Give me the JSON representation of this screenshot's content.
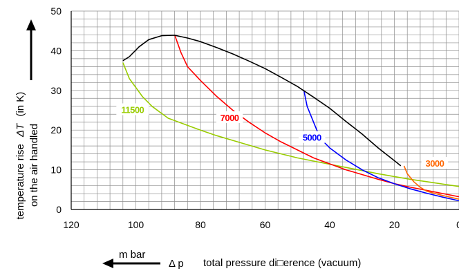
{
  "chart_data": {
    "type": "line",
    "title": "",
    "ylabel_line1": "temperature rise",
    "ylabel_symbol": "ΔT",
    "ylabel_unit": "(in K)",
    "ylabel_line2": "on the air handled",
    "xlabel_unit": "m bar",
    "xlabel_symbol": "Δ p",
    "xlabel_text": "total pressure di□erence (vacuum)",
    "x_reversed": true,
    "xlim": [
      0,
      120
    ],
    "ylim": [
      0,
      50
    ],
    "x_ticks": [
      "120",
      "100",
      "80",
      "60",
      "40",
      "20",
      "0"
    ],
    "y_ticks": [
      "0",
      "10",
      "20",
      "30",
      "40",
      "50"
    ],
    "grid": true,
    "series": [
      {
        "name": "11500",
        "color": "#99cc00",
        "points": [
          [
            104,
            37
          ],
          [
            102,
            33
          ],
          [
            98,
            28.5
          ],
          [
            95,
            26
          ],
          [
            90,
            23
          ],
          [
            85,
            21.5
          ],
          [
            80,
            20
          ],
          [
            75,
            18.6
          ],
          [
            70,
            17.4
          ],
          [
            65,
            16.2
          ],
          [
            60,
            15
          ],
          [
            55,
            14
          ],
          [
            50,
            13
          ],
          [
            45,
            12.2
          ],
          [
            40,
            11.4
          ],
          [
            35,
            10.6
          ],
          [
            30,
            9.8
          ],
          [
            25,
            9
          ],
          [
            20,
            8.3
          ],
          [
            15,
            7.6
          ],
          [
            10,
            7
          ],
          [
            5,
            6.4
          ],
          [
            0,
            5.8
          ]
        ]
      },
      {
        "name": "7000",
        "color": "#ff0000",
        "points": [
          [
            88,
            44
          ],
          [
            86,
            39.5
          ],
          [
            84,
            36
          ],
          [
            80,
            32.5
          ],
          [
            75,
            28.5
          ],
          [
            70,
            25
          ],
          [
            65,
            22
          ],
          [
            60,
            19.3
          ],
          [
            55,
            17
          ],
          [
            50,
            15
          ],
          [
            45,
            13
          ],
          [
            40,
            11.5
          ],
          [
            35,
            10
          ],
          [
            30,
            8.8
          ],
          [
            25,
            7.6
          ],
          [
            20,
            6.5
          ],
          [
            15,
            5.6
          ],
          [
            10,
            4.8
          ],
          [
            5,
            4
          ],
          [
            0,
            3.2
          ]
        ]
      },
      {
        "name": "5000",
        "color": "#0000ff",
        "points": [
          [
            48,
            30
          ],
          [
            47,
            26
          ],
          [
            45,
            22
          ],
          [
            43,
            18
          ],
          [
            40,
            15.5
          ],
          [
            35,
            12.5
          ],
          [
            30,
            10
          ],
          [
            25,
            8
          ],
          [
            20,
            6.5
          ],
          [
            15,
            5.2
          ],
          [
            10,
            4.1
          ],
          [
            5,
            3.1
          ],
          [
            0,
            2.2
          ]
        ]
      },
      {
        "name": "3000",
        "color": "#ff6600",
        "points": [
          [
            17,
            11
          ],
          [
            16,
            9
          ],
          [
            14,
            7
          ],
          [
            12,
            5.6
          ],
          [
            10,
            4.6
          ],
          [
            5,
            3.5
          ],
          [
            0,
            2.6
          ]
        ]
      },
      {
        "name": "",
        "color": "#000000",
        "points": [
          [
            104,
            37.5
          ],
          [
            102,
            38.5
          ],
          [
            99,
            41
          ],
          [
            96,
            42.8
          ],
          [
            92,
            43.8
          ],
          [
            88,
            43.9
          ],
          [
            84,
            43.2
          ],
          [
            80,
            42.3
          ],
          [
            75,
            40.8
          ],
          [
            70,
            39.2
          ],
          [
            65,
            37.4
          ],
          [
            60,
            35.5
          ],
          [
            55,
            33.3
          ],
          [
            50,
            31
          ],
          [
            45,
            28.3
          ],
          [
            40,
            25.5
          ],
          [
            35,
            22.2
          ],
          [
            30,
            19
          ],
          [
            25,
            15.5
          ],
          [
            20,
            12.3
          ],
          [
            18,
            11
          ]
        ]
      }
    ],
    "annotations": [
      {
        "text": "11500",
        "color": "#99cc00",
        "x": 101,
        "y": 25
      },
      {
        "text": "7000",
        "color": "#ff0000",
        "x": 71,
        "y": 23
      },
      {
        "text": "5000",
        "color": "#0000ff",
        "x": 45.5,
        "y": 18
      },
      {
        "text": "3000",
        "color": "#ff6600",
        "x": 7.5,
        "y": 11.5
      }
    ]
  }
}
